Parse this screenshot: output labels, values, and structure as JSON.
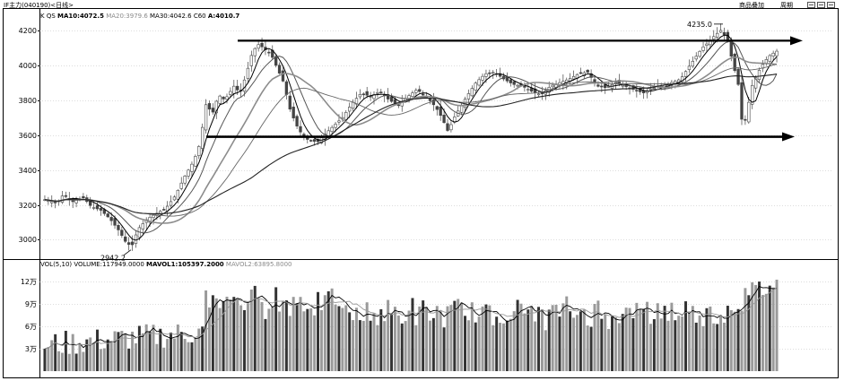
{
  "header": {
    "title": "IF主力(040190)<日线>",
    "right_label_1": "商品叠加",
    "right_label_2": "周期"
  },
  "indicators": {
    "k_label": "K",
    "qs_label": "QS",
    "ma10": "MA10:4072.5",
    "ma20": "MA20:3979.6",
    "ma30": "MA30:4042.6",
    "c60": "C60",
    "a": "A:4010.7"
  },
  "volume_panel": {
    "label": "VOL(5,10)",
    "volume": "VOLUME:117949.0000",
    "mavol1": "MAVOL1:105397.2000",
    "mavol2": "MAVOL2:63895.8000"
  },
  "annotations": {
    "high_label": "4235.0",
    "low_label": "2942.2"
  },
  "colors": {
    "candle": "#444444",
    "volume_dark": "#333333",
    "volume_light": "#9a9a9a",
    "arrow": "#000000",
    "grid": "#bbbbbb",
    "ma_gray": "#8c8c8c"
  },
  "chart_data": [
    {
      "type": "candlestick",
      "y_ticks": [
        3000,
        3200,
        3400,
        3600,
        3800,
        4000,
        4200
      ],
      "ylim": [
        2910,
        4260
      ],
      "bars": 210,
      "close_path": [
        [
          0,
          3230
        ],
        [
          8,
          3210
        ],
        [
          12,
          3260
        ],
        [
          18,
          3220
        ],
        [
          25,
          3240
        ],
        [
          30,
          3190
        ],
        [
          36,
          3170
        ],
        [
          42,
          3120
        ],
        [
          48,
          3050
        ],
        [
          52,
          2990
        ],
        [
          56,
          2960
        ],
        [
          60,
          3060
        ],
        [
          66,
          3120
        ],
        [
          72,
          3150
        ],
        [
          78,
          3180
        ],
        [
          84,
          3250
        ],
        [
          90,
          3360
        ],
        [
          96,
          3450
        ],
        [
          100,
          3550
        ],
        [
          104,
          3780
        ],
        [
          108,
          3720
        ],
        [
          112,
          3830
        ],
        [
          116,
          3800
        ],
        [
          122,
          3880
        ],
        [
          126,
          3840
        ],
        [
          130,
          3950
        ],
        [
          134,
          4080
        ],
        [
          138,
          4120
        ],
        [
          142,
          4090
        ],
        [
          146,
          4060
        ],
        [
          150,
          3980
        ],
        [
          154,
          3900
        ],
        [
          158,
          3750
        ],
        [
          162,
          3660
        ],
        [
          166,
          3600
        ],
        [
          170,
          3570
        ],
        [
          176,
          3560
        ],
        [
          180,
          3600
        ],
        [
          186,
          3650
        ],
        [
          192,
          3700
        ],
        [
          198,
          3780
        ],
        [
          204,
          3840
        ],
        [
          210,
          3820
        ],
        [
          216,
          3850
        ],
        [
          222,
          3800
        ],
        [
          228,
          3770
        ],
        [
          234,
          3820
        ],
        [
          240,
          3860
        ],
        [
          246,
          3820
        ],
        [
          252,
          3760
        ],
        [
          256,
          3700
        ],
        [
          260,
          3620
        ],
        [
          264,
          3700
        ],
        [
          268,
          3760
        ],
        [
          272,
          3820
        ],
        [
          278,
          3900
        ],
        [
          284,
          3950
        ],
        [
          290,
          3960
        ],
        [
          296,
          3920
        ],
        [
          302,
          3890
        ],
        [
          308,
          3880
        ],
        [
          314,
          3850
        ],
        [
          320,
          3830
        ],
        [
          326,
          3880
        ],
        [
          332,
          3900
        ],
        [
          338,
          3920
        ],
        [
          344,
          3950
        ],
        [
          350,
          3960
        ],
        [
          356,
          3880
        ],
        [
          362,
          3870
        ],
        [
          368,
          3900
        ],
        [
          374,
          3880
        ],
        [
          380,
          3860
        ],
        [
          386,
          3840
        ],
        [
          392,
          3870
        ],
        [
          398,
          3880
        ],
        [
          404,
          3900
        ],
        [
          410,
          3920
        ],
        [
          416,
          4000
        ],
        [
          420,
          4050
        ],
        [
          424,
          4100
        ],
        [
          428,
          4130
        ],
        [
          432,
          4170
        ],
        [
          436,
          4200
        ],
        [
          440,
          4150
        ],
        [
          444,
          4000
        ],
        [
          448,
          3860
        ],
        [
          450,
          3620
        ],
        [
          452,
          3700
        ],
        [
          456,
          3880
        ],
        [
          460,
          3960
        ],
        [
          464,
          4020
        ],
        [
          468,
          4060
        ],
        [
          472,
          4080
        ]
      ],
      "max_label": {
        "value": 4235.0,
        "text": "4235.0"
      },
      "min_label": {
        "value": 2942.2,
        "text": "2942.2"
      },
      "arrows": [
        {
          "direction": "right",
          "y_value": 4140
        },
        {
          "direction": "right",
          "y_value": 3590
        }
      ]
    },
    {
      "type": "bar",
      "name": "volume",
      "y_ticks": [
        "3万",
        "6万",
        "9万",
        "12万"
      ],
      "y_tick_values": [
        30000,
        60000,
        90000,
        120000
      ],
      "ylim": [
        0,
        140000
      ],
      "bars": 210
    }
  ]
}
